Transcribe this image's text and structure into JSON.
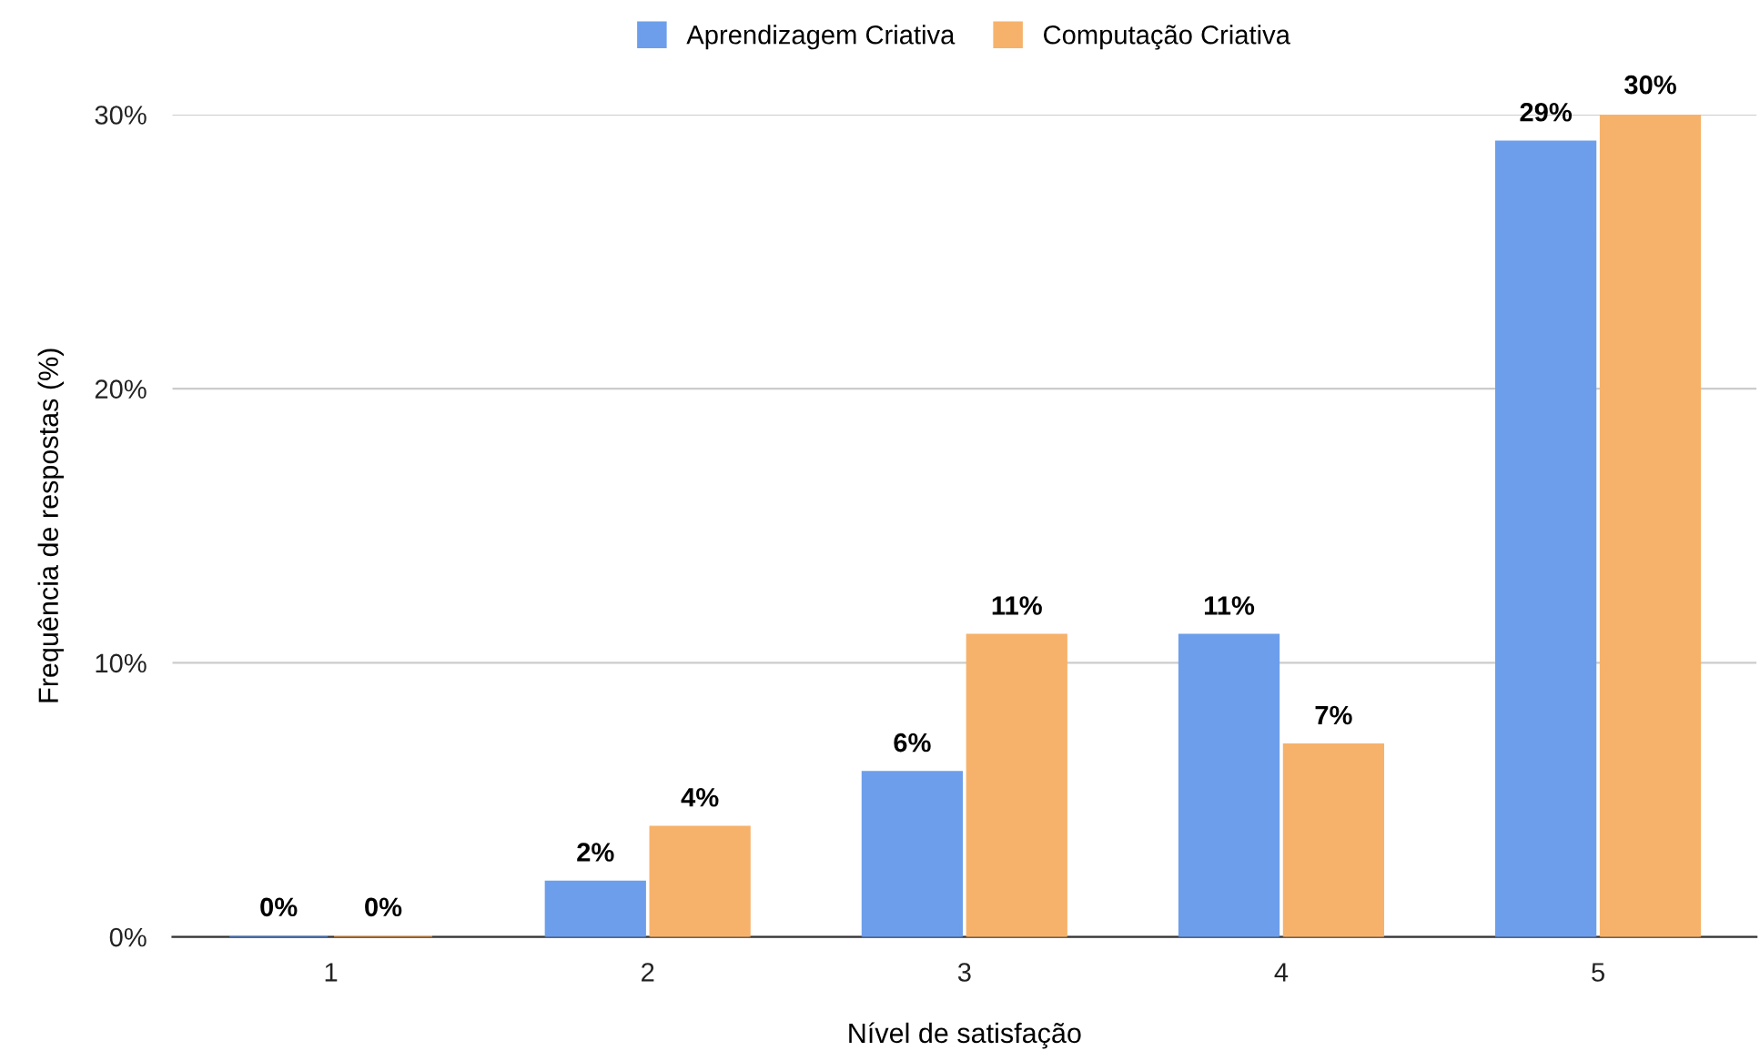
{
  "chart_data": {
    "type": "bar",
    "xlabel": "Nível de satisfação",
    "ylabel": "Frequência de respostas (%)",
    "categories": [
      "1",
      "2",
      "3",
      "4",
      "5"
    ],
    "series": [
      {
        "name": "Aprendizagem Criativa",
        "color": "#6d9eeb",
        "values": [
          0,
          2,
          6,
          11,
          29
        ],
        "value_labels": [
          "0%",
          "2%",
          "6%",
          "11%",
          "29%"
        ]
      },
      {
        "name": "Computação Criativa",
        "color": "#f6b26b",
        "values": [
          0,
          4,
          11,
          7,
          30
        ],
        "value_labels": [
          "0%",
          "4%",
          "11%",
          "7%",
          "30%"
        ]
      }
    ],
    "ylim": [
      0,
      30
    ],
    "yticks": [
      {
        "value": 0,
        "label": "0%"
      },
      {
        "value": 10,
        "label": "10%"
      },
      {
        "value": 20,
        "label": "20%"
      },
      {
        "value": 30,
        "label": "30%"
      }
    ],
    "grid": "y",
    "legend": "top"
  }
}
